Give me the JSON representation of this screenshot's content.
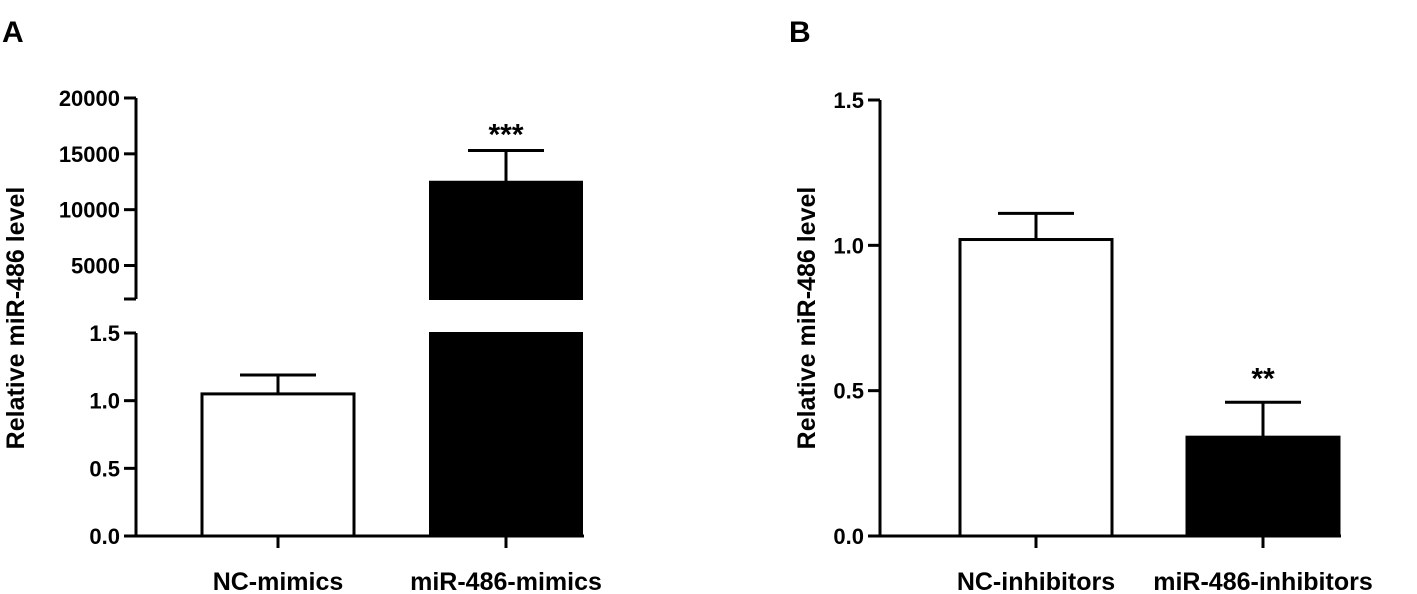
{
  "colors": {
    "filled_bar": "#000000",
    "open_bar": "#ffffff",
    "axis": "#000000"
  },
  "chart_data": [
    {
      "panel": "A",
      "type": "bar",
      "axis_break": true,
      "ylabel": "Relative miR-486 level",
      "categories": [
        "NC-mimics",
        "miR-486-mimics"
      ],
      "values": [
        1.05,
        12500
      ],
      "errors": [
        0.14,
        2800
      ],
      "significance": [
        "",
        "***"
      ],
      "bar_fill": [
        "#ffffff",
        "#000000"
      ],
      "lower_segment": {
        "ylim": [
          0,
          1.5
        ],
        "ticks": [
          "0.0",
          "0.5",
          "1.0",
          "1.5"
        ]
      },
      "upper_segment": {
        "ylim": [
          2000,
          20000
        ],
        "ticks": [
          "5000",
          "10000",
          "15000",
          "20000"
        ]
      }
    },
    {
      "panel": "B",
      "type": "bar",
      "ylabel": "Relative miR-486 level",
      "categories": [
        "NC-inhibitors",
        "miR-486-inhibitors"
      ],
      "values": [
        1.02,
        0.34
      ],
      "errors": [
        0.09,
        0.12
      ],
      "significance": [
        "",
        "**"
      ],
      "bar_fill": [
        "#ffffff",
        "#000000"
      ],
      "ylim": [
        0,
        1.5
      ],
      "ticks": [
        "0.0",
        "0.5",
        "1.0",
        "1.5"
      ]
    }
  ]
}
